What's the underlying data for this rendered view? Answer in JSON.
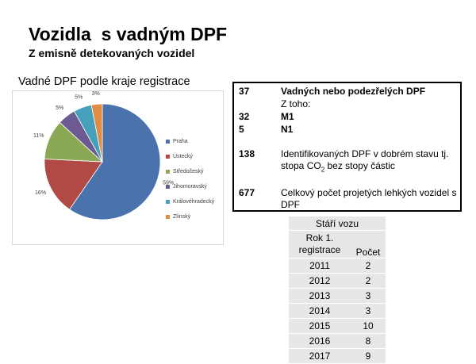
{
  "slide": {
    "title": "Vozidla  s vadným DPF",
    "subtitle": "Z emisně detekovaných vozidel"
  },
  "chart_data": {
    "type": "pie",
    "title": "Vadné DPF podle kraje registrace",
    "categories": [
      "Praha",
      "Ústecký",
      "Středočeský",
      "Jihomoravský",
      "Královéhradecký",
      "Zlínský"
    ],
    "values": [
      59,
      16,
      11,
      5,
      5,
      3
    ],
    "data_labels": [
      "59%",
      "16%",
      "11%",
      "5%",
      "5%",
      "3%"
    ],
    "colors": [
      "#4a73ad",
      "#b14a45",
      "#8ba855",
      "#6b5b91",
      "#46a0bc",
      "#e08c43"
    ],
    "legend_position": "right"
  },
  "info": {
    "rows": [
      {
        "number": "37",
        "text": "Vadných nebo podezřelých DPF",
        "bold": true
      },
      {
        "number": "",
        "text": "Z toho:",
        "bold": false
      },
      {
        "number": "32",
        "text": "M1",
        "bold": true
      },
      {
        "number": "5",
        "text": "N1",
        "bold": true
      },
      {
        "number": "138",
        "text_before": "Identifikovaných DPF v dobrém stavu tj. stopa CO",
        "subscript": "2",
        "text_after": " bez stopy částic",
        "bold": false
      },
      {
        "number": "677",
        "text": "Celkový počet projetých lehkých vozidel s DPF",
        "bold": false
      }
    ]
  },
  "age_table": {
    "title": "Stáří vozu",
    "col_year": "Rok 1. registrace",
    "col_count": "Počet",
    "rows": [
      {
        "year": "2011",
        "count": "2"
      },
      {
        "year": "2012",
        "count": "2"
      },
      {
        "year": "2013",
        "count": "3"
      },
      {
        "year": "2014",
        "count": "3"
      },
      {
        "year": "2015",
        "count": "10"
      },
      {
        "year": "2016",
        "count": "8"
      },
      {
        "year": "2017",
        "count": "9"
      }
    ]
  }
}
